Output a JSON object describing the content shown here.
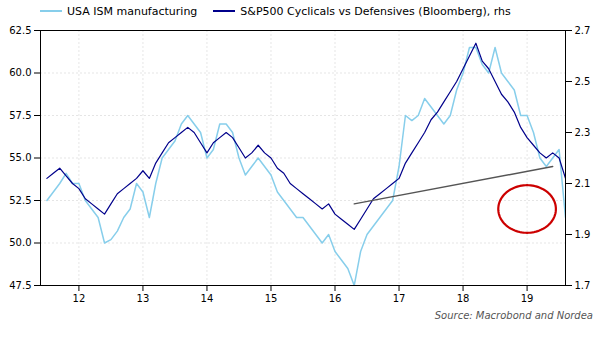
{
  "chart_data": {
    "type": "line",
    "x": [
      11.5,
      11.6,
      11.7,
      11.8,
      11.9,
      12.0,
      12.1,
      12.2,
      12.3,
      12.4,
      12.5,
      12.6,
      12.7,
      12.8,
      12.9,
      13.0,
      13.1,
      13.2,
      13.3,
      13.4,
      13.5,
      13.6,
      13.7,
      13.8,
      13.9,
      14.0,
      14.1,
      14.2,
      14.3,
      14.4,
      14.5,
      14.6,
      14.7,
      14.8,
      14.9,
      15.0,
      15.1,
      15.2,
      15.3,
      15.4,
      15.5,
      15.6,
      15.7,
      15.8,
      15.9,
      16.0,
      16.1,
      16.2,
      16.3,
      16.4,
      16.5,
      16.6,
      16.7,
      16.8,
      16.9,
      17.0,
      17.1,
      17.2,
      17.3,
      17.4,
      17.5,
      17.6,
      17.7,
      17.8,
      17.9,
      18.0,
      18.1,
      18.2,
      18.3,
      18.4,
      18.5,
      18.6,
      18.7,
      18.8,
      18.9,
      19.0,
      19.1,
      19.2,
      19.3,
      19.4,
      19.5,
      19.6
    ],
    "series": [
      {
        "name": "USA ISM manufacturing",
        "color": "#87CEEB",
        "values": [
          52.5,
          53.0,
          53.5,
          54.1,
          53.5,
          53.5,
          52.5,
          52.0,
          51.5,
          50.0,
          50.2,
          50.7,
          51.5,
          52.0,
          53.5,
          53.0,
          51.5,
          53.5,
          55.0,
          55.5,
          56.0,
          57.0,
          57.5,
          57.0,
          56.5,
          55.0,
          55.5,
          57.0,
          57.0,
          56.5,
          55.0,
          54.0,
          54.5,
          55.0,
          54.5,
          54.0,
          53.0,
          52.5,
          52.0,
          51.5,
          51.5,
          51.0,
          50.5,
          50.0,
          50.5,
          49.5,
          49.0,
          48.5,
          47.5,
          49.5,
          50.5,
          51.0,
          51.5,
          52.0,
          52.5,
          54.5,
          57.5,
          57.2,
          57.5,
          58.5,
          58.0,
          57.5,
          57.0,
          57.5,
          59.0,
          60.0,
          61.5,
          61.5,
          60.5,
          60.0,
          61.5,
          60.0,
          59.5,
          59.0,
          57.5,
          57.5,
          56.5,
          55.0,
          54.5,
          55.0,
          55.5,
          51.5
        ]
      },
      {
        "name": "S&P500 Cyclicals vs Defensives (Bloomberg), rhs",
        "color": "#00008B",
        "axis": "y2",
        "values": [
          2.12,
          2.14,
          2.16,
          2.13,
          2.1,
          2.08,
          2.04,
          2.02,
          2.0,
          1.98,
          2.02,
          2.06,
          2.08,
          2.1,
          2.12,
          2.15,
          2.12,
          2.18,
          2.22,
          2.26,
          2.28,
          2.3,
          2.32,
          2.3,
          2.26,
          2.22,
          2.26,
          2.28,
          2.3,
          2.28,
          2.24,
          2.2,
          2.22,
          2.25,
          2.22,
          2.2,
          2.16,
          2.14,
          2.1,
          2.08,
          2.06,
          2.04,
          2.02,
          2.0,
          2.02,
          1.98,
          1.96,
          1.94,
          1.92,
          1.96,
          2.0,
          2.04,
          2.06,
          2.08,
          2.1,
          2.12,
          2.18,
          2.22,
          2.26,
          2.3,
          2.35,
          2.38,
          2.42,
          2.46,
          2.5,
          2.55,
          2.6,
          2.65,
          2.58,
          2.55,
          2.5,
          2.45,
          2.42,
          2.38,
          2.32,
          2.28,
          2.25,
          2.22,
          2.2,
          2.22,
          2.2,
          2.12
        ]
      }
    ],
    "xlim": [
      11.4,
      19.6
    ],
    "xticks": [
      12,
      13,
      14,
      15,
      16,
      17,
      18,
      19
    ],
    "ylim": [
      47.5,
      62.5
    ],
    "yticks": [
      47.5,
      {
        "value": 50,
        "label": "50.0"
      },
      52.5,
      {
        "value": 55,
        "label": "55.0"
      },
      57.5,
      {
        "value": 60,
        "label": "60.0"
      },
      62.5
    ],
    "y2lim": [
      1.7,
      2.7
    ],
    "y2ticks": [
      1.7,
      1.9,
      2.1,
      2.3,
      2.5,
      2.7
    ],
    "grid": true,
    "legend": "upper left",
    "source": "Source: Macrobond and Nordea",
    "annotations": [
      {
        "type": "line",
        "points": [
          [
            16.3,
            52.3
          ],
          [
            19.4,
            54.5
          ]
        ],
        "color": "#555555"
      },
      {
        "type": "ellipse",
        "center": [
          19.0,
          52.0
        ],
        "width": 0.9,
        "height": 2.8,
        "color": "#CC0000"
      }
    ]
  }
}
